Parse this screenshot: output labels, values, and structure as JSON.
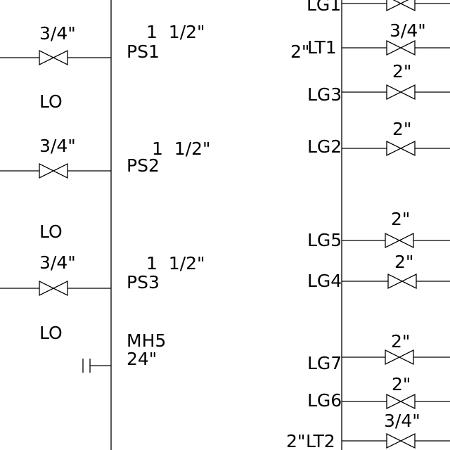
{
  "left_column": {
    "branches": [
      {
        "size": "3/4\"",
        "tag": "PS1",
        "connection": "1  1/2\"",
        "status": ""
      },
      {
        "size": "3/4\"",
        "tag": "PS2",
        "connection": "1  1/2\"",
        "status": "LO"
      },
      {
        "size": "3/4\"",
        "tag": "PS3",
        "connection": "1  1/2\"",
        "status": "LO"
      }
    ],
    "bottom_status": "LO",
    "manhole": {
      "tag": "MH5",
      "size": "24\""
    }
  },
  "right_column": {
    "branches": [
      {
        "tag": "LG1",
        "size": ""
      },
      {
        "tag": "LT1",
        "prefix": "2\"",
        "size": "3/4\""
      },
      {
        "tag": "LG3",
        "size": "2\""
      },
      {
        "tag": "LG2",
        "size": "2\""
      },
      {
        "tag": "LG5",
        "size": "2\""
      },
      {
        "tag": "LG4",
        "size": "2\""
      },
      {
        "tag": "LG7",
        "size": "2\""
      },
      {
        "tag": "LG6",
        "size": "2\""
      },
      {
        "tag": "LT2",
        "prefix": "2\"",
        "size": "3/4\""
      }
    ]
  }
}
